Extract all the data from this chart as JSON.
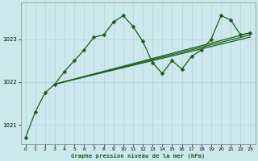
{
  "background_color": "#cce8ec",
  "line_color": "#1a5e1a",
  "grid_color": "#aed4d8",
  "xlabel": "Graphe pression niveau de la mer (hPa)",
  "ylim": [
    1020.55,
    1023.85
  ],
  "xlim": [
    -0.5,
    23.5
  ],
  "yticks": [
    1021,
    1022,
    1023
  ],
  "xticks": [
    0,
    1,
    2,
    3,
    4,
    5,
    6,
    7,
    8,
    9,
    10,
    11,
    12,
    13,
    14,
    15,
    16,
    17,
    18,
    19,
    20,
    21,
    22,
    23
  ],
  "main_series": {
    "x": [
      0,
      1,
      2,
      3,
      4,
      5,
      6,
      7,
      8,
      9,
      10,
      11,
      12,
      13,
      14,
      15,
      16,
      17,
      18,
      19,
      20,
      21,
      22,
      23
    ],
    "y": [
      1020.7,
      1021.3,
      1021.75,
      1021.95,
      1022.25,
      1022.5,
      1022.75,
      1023.05,
      1023.1,
      1023.4,
      1023.55,
      1023.3,
      1022.95,
      1022.45,
      1022.2,
      1022.5,
      1022.3,
      1022.6,
      1022.75,
      1023.0,
      1023.55,
      1023.45,
      1023.1,
      1023.15
    ],
    "marker": "D",
    "markersize": 2.5,
    "linewidth": 0.9
  },
  "trend_lines": [
    {
      "x0": 3,
      "y0": 1021.95,
      "x1": 23,
      "y1": 1023.15
    },
    {
      "x0": 3,
      "y0": 1021.95,
      "x1": 23,
      "y1": 1023.1
    },
    {
      "x0": 3,
      "y0": 1021.95,
      "x1": 23,
      "y1": 1023.05
    }
  ]
}
